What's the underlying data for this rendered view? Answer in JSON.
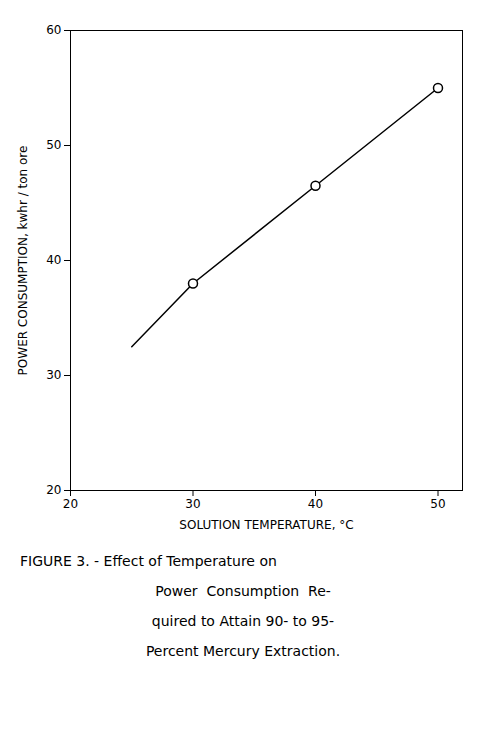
{
  "chart_data": {
    "type": "line",
    "xlabel": "SOLUTION TEMPERATURE, °C",
    "ylabel": "POWER CONSUMPTION, kwhr / ton ore",
    "caption": [
      "FIGURE 3. - Effect of Temperature on",
      "Power  Consumption  Re-",
      "quired to Attain 90- to 95-",
      "Percent Mercury Extraction."
    ],
    "series": [
      {
        "type": "line",
        "x": [
          25,
          30,
          40,
          50
        ],
        "values": [
          32.5,
          38.0,
          46.5,
          55.0
        ],
        "color": "#000000"
      },
      {
        "type": "scatter",
        "x": [
          30,
          40,
          50
        ],
        "values": [
          38.0,
          46.5,
          55.0
        ],
        "color": "#000000",
        "marker": "circle"
      }
    ],
    "xlim": [
      20,
      52
    ],
    "ylim": [
      20,
      60
    ],
    "xticks": [
      20,
      30,
      40,
      50
    ],
    "yticks": [
      20,
      30,
      40,
      50,
      60
    ],
    "grid": false
  }
}
